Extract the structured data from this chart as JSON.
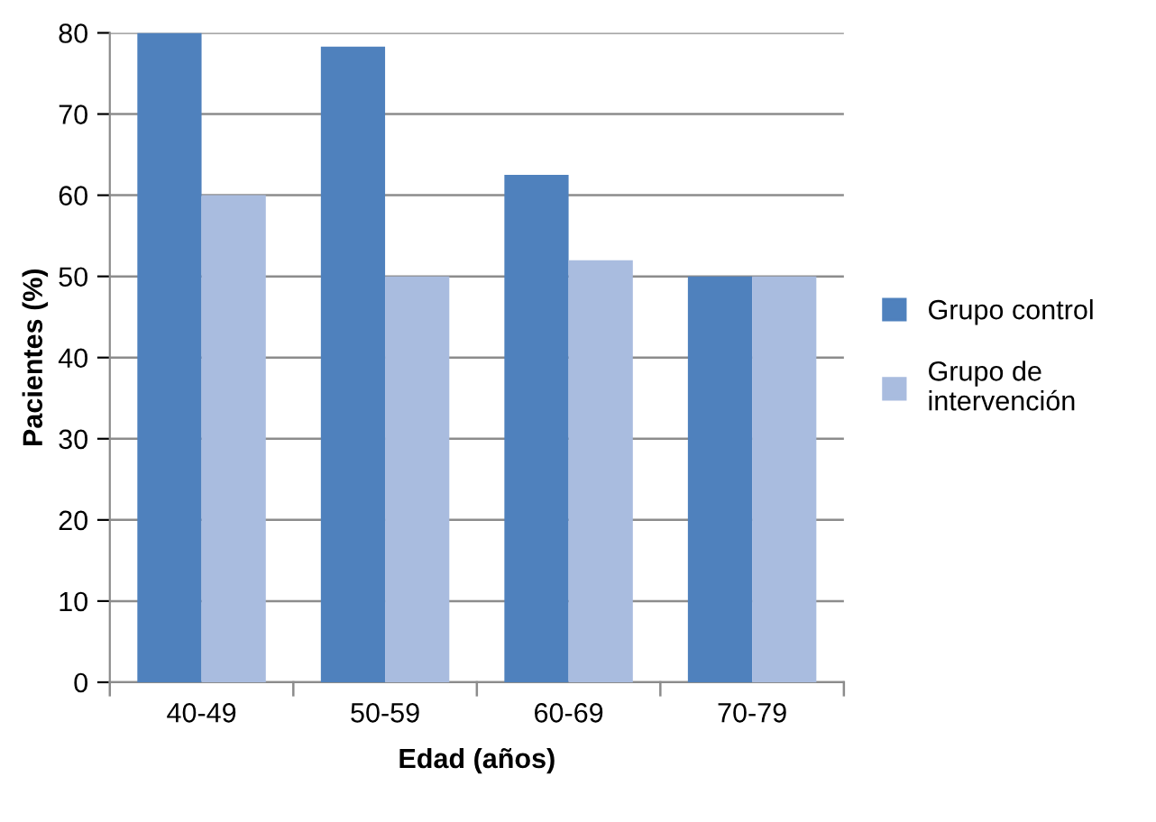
{
  "chart_data": {
    "type": "bar",
    "xlabel": "Edad (años)",
    "ylabel": "Pacientes (%)",
    "categories": [
      "40-49",
      "50-59",
      "60-69",
      "70-79"
    ],
    "series": [
      {
        "name": "Grupo control",
        "color": "#4f81bd",
        "values": [
          80,
          78.3,
          62.5,
          50
        ]
      },
      {
        "name": "Grupo de intervención",
        "color": "#a9bcdf",
        "values": [
          60,
          50,
          52,
          50
        ]
      }
    ],
    "ylim": [
      0,
      80
    ],
    "yticks": [
      0,
      10,
      20,
      30,
      40,
      50,
      60,
      70,
      80
    ],
    "grid": "y",
    "legend": "right"
  }
}
